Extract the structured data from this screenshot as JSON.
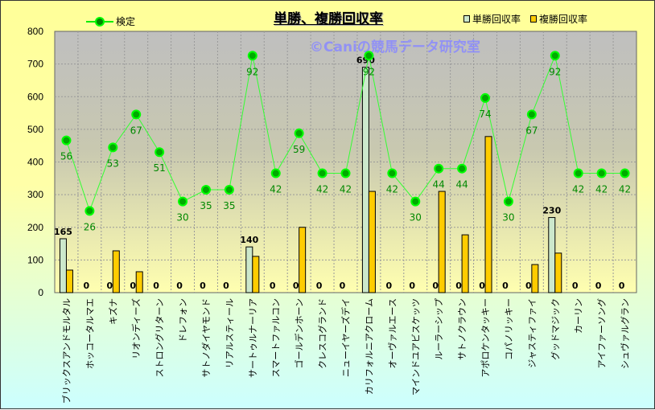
{
  "chart_data": {
    "type": "bar",
    "title": "単勝、複勝回収率",
    "watermark": "©Caniの競馬データ研究室",
    "ylim": [
      0,
      800
    ],
    "yticks": [
      0,
      100,
      200,
      300,
      400,
      500,
      600,
      700,
      800
    ],
    "secondary_ylim": [
      -8.75,
      102.35
    ],
    "grid": true,
    "legend_position": "top",
    "categories": [
      "ブリックスアンドモルタル",
      "ホッコータルマエ",
      "キズナ",
      "リオンディーズ",
      "ストロングリターン",
      "ドレフォン",
      "サトノダイヤモンド",
      "リアルスティール",
      "サートゥルナーリア",
      "スマートファルコン",
      "ゴールデンホーン",
      "クレスコグランド",
      "ニューイヤーズデイ",
      "カリフォルニアクローム",
      "オーヴァルエース",
      "マインドユアビスケッツ",
      "ルーラーシップ",
      "サトノクラウン",
      "アポロケンタッキー",
      "コパノリッキー",
      "ジャスティファイ",
      "グッドマジック",
      "カーリン",
      "アイファーソング",
      "シュヴァルグラン"
    ],
    "series": [
      {
        "name": "単勝回収率",
        "type": "bar",
        "color": "#cce8cc",
        "values": [
          165,
          0,
          0,
          0,
          0,
          0,
          0,
          0,
          140,
          0,
          0,
          0,
          0,
          690,
          0,
          0,
          0,
          0,
          0,
          0,
          0,
          230,
          0,
          0,
          0
        ]
      },
      {
        "name": "複勝回収率",
        "type": "bar",
        "color": "#ffcc00",
        "values": [
          69,
          0,
          128,
          64,
          0,
          0,
          0,
          0,
          111,
          0,
          200,
          0,
          0,
          310,
          0,
          0,
          310,
          177,
          478,
          0,
          86,
          121,
          0,
          0,
          0
        ]
      },
      {
        "name": "検定",
        "type": "line",
        "axis": "secondary",
        "color": "#00cc00",
        "values": [
          56,
          26,
          53,
          67,
          51,
          30,
          35,
          35,
          92,
          42,
          59,
          42,
          42,
          92,
          42,
          30,
          44,
          44,
          74,
          30,
          67,
          92,
          42,
          42,
          42
        ]
      }
    ]
  }
}
